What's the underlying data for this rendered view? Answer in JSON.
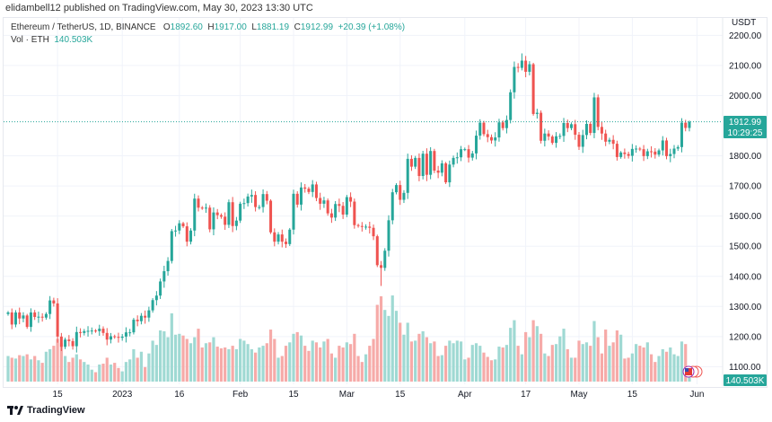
{
  "header": {
    "published": "elidambell12 published on TradingView.com, May 30, 2023 13:30 UTC"
  },
  "legend": {
    "symbol": "Ethereum / TetherUS, 1D, BINANCE",
    "o_label": "O",
    "o": "1892.60",
    "h_label": "H",
    "h": "1917.00",
    "l_label": "L",
    "l": "1881.19",
    "c_label": "C",
    "c": "1912.99",
    "change": "+20.39 (+1.08%)",
    "vol_label": "Vol · ETH",
    "vol": "140.503K"
  },
  "price_axis": {
    "currency": "USDT",
    "ticks": [
      "2200.00",
      "2100.00",
      "2000.00",
      "1800.00",
      "1700.00",
      "1600.00",
      "1500.00",
      "1400.00",
      "1300.00",
      "1200.00",
      "1100.00"
    ]
  },
  "last_price": {
    "price": "1912.99",
    "countdown": "10:29:25",
    "volume": "140.503K"
  },
  "time_axis": [
    {
      "label": "15",
      "date": "2022-12-15"
    },
    {
      "label": "2023",
      "date": "2023-01-01"
    },
    {
      "label": "16",
      "date": "2023-01-16"
    },
    {
      "label": "Feb",
      "date": "2023-02-01"
    },
    {
      "label": "15",
      "date": "2023-02-15"
    },
    {
      "label": "Mar",
      "date": "2023-03-01"
    },
    {
      "label": "15",
      "date": "2023-03-15"
    },
    {
      "label": "Apr",
      "date": "2023-04-01"
    },
    {
      "label": "17",
      "date": "2023-04-17"
    },
    {
      "label": "May",
      "date": "2023-05-01"
    },
    {
      "label": "15",
      "date": "2023-05-15"
    },
    {
      "label": "Jun",
      "date": "2023-06-01"
    }
  ],
  "footer": {
    "brand": "TradingView"
  },
  "colors": {
    "up": "#26a69a",
    "down": "#ef5350",
    "vol_up": "#9fd9d3",
    "vol_down": "#f6aaa8",
    "grid": "#f0f3fa"
  },
  "chart_data": {
    "type": "candlestick",
    "title": "Ethereum / TetherUS, 1D, BINANCE",
    "start_date": "2022-12-02",
    "first_open": 1275,
    "ylim": [
      1080,
      2240
    ],
    "ylabel": "USDT",
    "closes": [
      1280,
      1240,
      1280,
      1260,
      1270,
      1232,
      1280,
      1265,
      1266,
      1263,
      1275,
      1320,
      1310,
      1200,
      1166,
      1190,
      1185,
      1168,
      1215,
      1212,
      1218,
      1219,
      1220,
      1218,
      1226,
      1212,
      1190,
      1201,
      1199,
      1196,
      1200,
      1214,
      1214,
      1256,
      1251,
      1269,
      1263,
      1287,
      1321,
      1336,
      1383,
      1417,
      1451,
      1550,
      1552,
      1576,
      1566,
      1515,
      1552,
      1658,
      1628,
      1627,
      1628,
      1556,
      1612,
      1603,
      1598,
      1571,
      1646,
      1567,
      1585,
      1641,
      1643,
      1665,
      1670,
      1630,
      1630,
      1673,
      1651,
      1546,
      1515,
      1539,
      1515,
      1507,
      1555,
      1674,
      1638,
      1695,
      1691,
      1680,
      1705,
      1660,
      1641,
      1652,
      1609,
      1595,
      1640,
      1634,
      1605,
      1663,
      1648,
      1570,
      1567,
      1564,
      1565,
      1561,
      1533,
      1437,
      1428,
      1485,
      1586,
      1679,
      1703,
      1654,
      1677,
      1790,
      1764,
      1793,
      1733,
      1807,
      1737,
      1816,
      1751,
      1744,
      1775,
      1712,
      1771,
      1793,
      1795,
      1822,
      1822,
      1794,
      1808,
      1867,
      1910,
      1872,
      1862,
      1851,
      1861,
      1911,
      1892,
      1919,
      2011,
      2095,
      2092,
      2116,
      2079,
      2104,
      1939,
      1943,
      1850,
      1874,
      1864,
      1843,
      1865,
      1866,
      1909,
      1892,
      1905,
      1870,
      1830,
      1869,
      1906,
      1876,
      1994,
      1896,
      1874,
      1847,
      1853,
      1840,
      1796,
      1811,
      1806,
      1800,
      1823,
      1824,
      1822,
      1799,
      1815,
      1814,
      1804,
      1818,
      1851,
      1799,
      1806,
      1824,
      1829,
      1910,
      1892.6,
      1912.99
    ],
    "last_candle": {
      "open": 1892.6,
      "high": 1917.0,
      "low": 1881.19,
      "close": 1912.99
    },
    "volumes_k": [
      300,
      280,
      270,
      310,
      300,
      320,
      260,
      300,
      250,
      220,
      350,
      380,
      420,
      500,
      450,
      300,
      230,
      280,
      320,
      260,
      230,
      200,
      140,
      110,
      200,
      210,
      280,
      200,
      220,
      160,
      120,
      230,
      260,
      380,
      280,
      350,
      170,
      330,
      480,
      430,
      600,
      590,
      520,
      800,
      550,
      560,
      540,
      500,
      450,
      520,
      620,
      400,
      450,
      460,
      520,
      410,
      390,
      400,
      380,
      420,
      380,
      500,
      480,
      440,
      380,
      340,
      400,
      420,
      450,
      610,
      500,
      280,
      300,
      420,
      460,
      560,
      580,
      540,
      420,
      360,
      480,
      460,
      400,
      470,
      500,
      330,
      280,
      420,
      400,
      460,
      440,
      560,
      300,
      230,
      320,
      420,
      500,
      900,
      1000,
      840,
      770,
      1010,
      830,
      690,
      550,
      690,
      470,
      480,
      560,
      590,
      520,
      450,
      470,
      300,
      310,
      420,
      480,
      450,
      480,
      470,
      260,
      280,
      430,
      450,
      420,
      340,
      290,
      250,
      260,
      410,
      400,
      430,
      630,
      720,
      420,
      320,
      580,
      520,
      720,
      650,
      560,
      330,
      300,
      430,
      440,
      530,
      620,
      380,
      280,
      280,
      480,
      440,
      460,
      420,
      710,
      520,
      330,
      610,
      420,
      460,
      600,
      550,
      270,
      280,
      330,
      440,
      420,
      400,
      460,
      320,
      230,
      300,
      380,
      350,
      400,
      320,
      300,
      470,
      440,
      140.503
    ]
  }
}
